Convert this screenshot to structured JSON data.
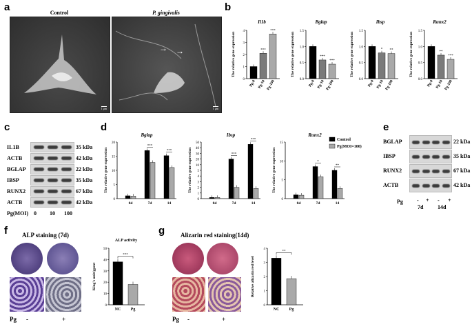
{
  "panel_labels": {
    "a": "a",
    "b": "b",
    "c": "c",
    "d": "d",
    "e": "e",
    "f": "f",
    "g": "g"
  },
  "panel_a": {
    "control_title": "Control",
    "pg_title": "P. gingivalis",
    "scale_label": "1 μm"
  },
  "panel_b": {
    "ylabel": "The relative gene expression",
    "color_ctrl": "#000000",
    "color_pg10": "#7a7a7a",
    "color_pg100": "#a9a9a9",
    "charts": [
      {
        "title": "Il1b",
        "categories": [
          "Pg-0",
          "Pg-10",
          "Pg-100"
        ],
        "values": [
          1.0,
          2.1,
          3.7
        ],
        "ylim": [
          0,
          4
        ],
        "ticks": [
          "0",
          "1",
          "2",
          "3",
          "4"
        ],
        "sig": [
          "",
          "***",
          "***"
        ]
      },
      {
        "title": "Bglap",
        "categories": [
          "Pg-0",
          "Pg-10",
          "Pg-100"
        ],
        "values": [
          1.0,
          0.58,
          0.45
        ],
        "ylim": [
          0,
          1.5
        ],
        "ticks": [
          "0.0",
          "0.5",
          "1.0",
          "1.5"
        ],
        "sig": [
          "",
          "***",
          "***"
        ]
      },
      {
        "title": "Ibsp",
        "categories": [
          "Pg-0",
          "Pg-10",
          "Pg-100"
        ],
        "values": [
          1.0,
          0.8,
          0.78
        ],
        "ylim": [
          0,
          1.5
        ],
        "ticks": [
          "0.0",
          "0.5",
          "1.0",
          "1.5"
        ],
        "sig": [
          "",
          "*",
          "**"
        ]
      },
      {
        "title": "Runx2",
        "categories": [
          "Pg-0",
          "Pg-10",
          "Pg-100"
        ],
        "values": [
          1.0,
          0.73,
          0.6
        ],
        "ylim": [
          0,
          1.5
        ],
        "ticks": [
          "0.0",
          "0.5",
          "1.0",
          "1.5"
        ],
        "sig": [
          "",
          "**",
          "***"
        ]
      }
    ]
  },
  "panel_c": {
    "rows": [
      {
        "name": "IL1B",
        "kda": "35 kDa"
      },
      {
        "name": "ACTB",
        "kda": "42 kDa"
      },
      {
        "name": "BGLAP",
        "kda": "22 kDa"
      },
      {
        "name": "IBSP",
        "kda": "35 kDa"
      },
      {
        "name": "RUNX2",
        "kda": "67 kDa"
      },
      {
        "name": "ACTB",
        "kda": "42 kDa"
      }
    ],
    "moi_label": "Pg(MOI)",
    "moi_values": [
      "0",
      "10",
      "100"
    ]
  },
  "panel_d": {
    "ylabel": "The relative gene expression",
    "legend": [
      "Control",
      "Pg(MOI=100)"
    ],
    "color_ctrl": "#000000",
    "color_pg": "#a9a9a9",
    "charts": [
      {
        "title": "Bglap",
        "categories": [
          "0d",
          "7d",
          "14"
        ],
        "series": [
          {
            "name": "Control",
            "values": [
              1.0,
              17.0,
              15.2
            ]
          },
          {
            "name": "Pg(MOI=100)",
            "values": [
              0.9,
              12.8,
              11.0
            ]
          }
        ],
        "ylim": [
          0,
          20
        ],
        "ticks": [
          "0",
          "5",
          "10",
          "15",
          "20"
        ],
        "sig": [
          "",
          "***",
          "***"
        ]
      },
      {
        "title": "Ibsp",
        "categories": [
          "0d",
          "7d",
          "14"
        ],
        "series": [
          {
            "name": "Control",
            "values": [
              1.0,
              35.0,
              48.0
            ]
          },
          {
            "name": "Pg(MOI=100)",
            "values": [
              1.0,
              10.0,
              9.0
            ]
          }
        ],
        "ylim": [
          0,
          50
        ],
        "ticks": [
          "0",
          "1",
          "2",
          "3",
          "4",
          "5",
          "10",
          "20",
          "30",
          "40",
          "50"
        ],
        "sig": [
          "",
          "***",
          "***"
        ]
      },
      {
        "title": "Runx2",
        "categories": [
          "0d",
          "7d",
          "14"
        ],
        "series": [
          {
            "name": "Control",
            "values": [
              1.0,
              8.5,
              7.5
            ]
          },
          {
            "name": "Pg(MOI=100)",
            "values": [
              0.9,
              5.8,
              2.7
            ]
          }
        ],
        "ylim": [
          0,
          15
        ],
        "ticks": [
          "0",
          "5",
          "10",
          "15"
        ],
        "sig": [
          "",
          "*",
          "**"
        ]
      }
    ]
  },
  "panel_e": {
    "rows": [
      {
        "name": "BGLAP",
        "kda": "22 kDa"
      },
      {
        "name": "IBSP",
        "kda": "35 kDa"
      },
      {
        "name": "RUNX2",
        "kda": "67 kDa"
      },
      {
        "name": "ACTB",
        "kda": "42 kDa"
      }
    ],
    "pg_label": "Pg",
    "signs": [
      "-",
      "+",
      "-",
      "+"
    ],
    "days": [
      "7d",
      "14d"
    ]
  },
  "panel_f": {
    "title": "ALP staining (7d)",
    "pg_label": "Pg",
    "signs": [
      "-",
      "+"
    ],
    "chart": {
      "title": "ALP activity",
      "ylabel": "King's unit/gprot",
      "categories": [
        "NC",
        "Pg"
      ],
      "values": [
        38,
        18
      ],
      "ylim": [
        0,
        50
      ],
      "ticks": [
        "0",
        "10",
        "20",
        "30",
        "40",
        "50"
      ],
      "sig": "***"
    }
  },
  "panel_g": {
    "title": "Alizarin red staining(14d)",
    "pg_label": "Pg",
    "signs": [
      "-",
      "+"
    ],
    "chart": {
      "ylabel": "Relative alizarin red level",
      "categories": [
        "NC",
        "Pg"
      ],
      "values": [
        3.3,
        1.85
      ],
      "ylim": [
        0,
        4
      ],
      "ticks": [
        "0",
        "1",
        "2",
        "3",
        "4"
      ],
      "sig": "**"
    }
  }
}
